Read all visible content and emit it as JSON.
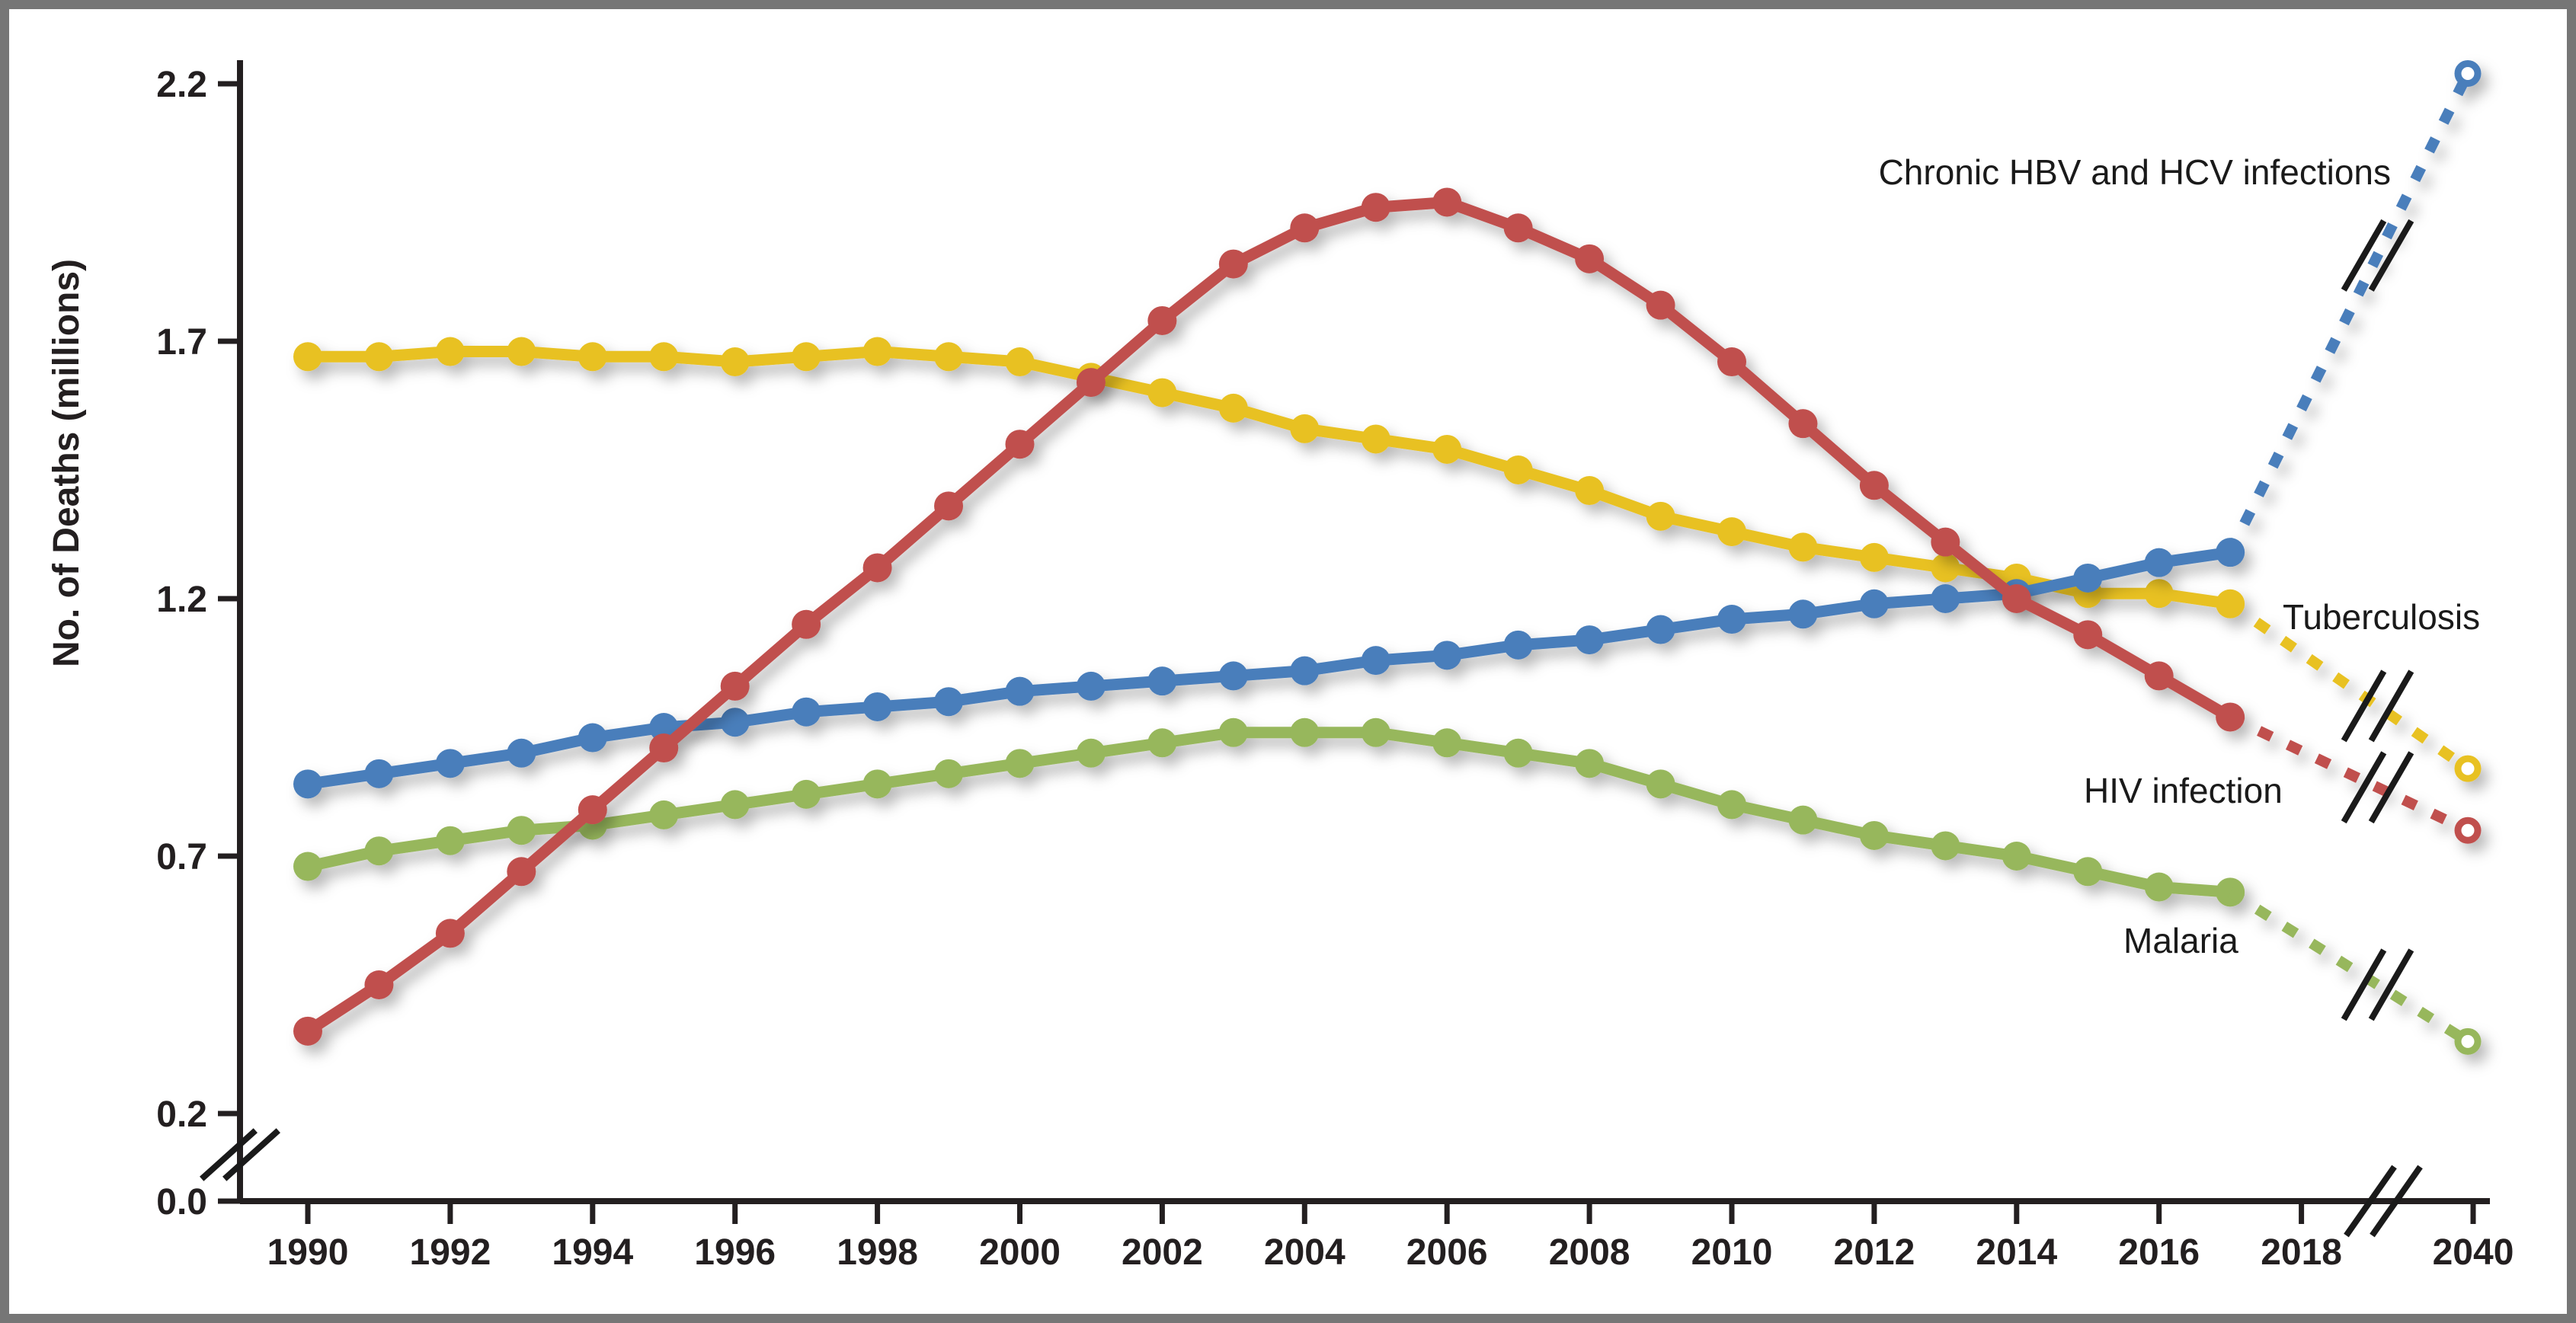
{
  "figure": {
    "background_color": "#ffffff",
    "frame_color": "#767676",
    "text_color": "#231f20"
  },
  "chart_data": {
    "type": "line",
    "title": "",
    "ylabel": "No. of Deaths (millions)",
    "xlabel": "",
    "grid": false,
    "legend_position": "inline-annotations",
    "y_ticks": [
      {
        "label": "2.2",
        "value": 2.2
      },
      {
        "label": "1.7",
        "value": 1.7
      },
      {
        "label": "1.2",
        "value": 1.2
      },
      {
        "label": "0.7",
        "value": 0.7
      },
      {
        "label": "0.2",
        "value": 0.2
      },
      {
        "label": "0.0",
        "value": 0.0
      }
    ],
    "x_ticks": [
      "1990",
      "1992",
      "1994",
      "1996",
      "1998",
      "2000",
      "2002",
      "2004",
      "2006",
      "2008",
      "2010",
      "2012",
      "2014",
      "2016",
      "2018",
      "2040"
    ],
    "axis_breaks": {
      "y_axis_between": [
        "0.0",
        "0.2"
      ],
      "x_axis_between": [
        "2018",
        "2040"
      ]
    },
    "years": [
      1990,
      1991,
      1992,
      1993,
      1994,
      1995,
      1996,
      1997,
      1998,
      1999,
      2000,
      2001,
      2002,
      2003,
      2004,
      2005,
      2006,
      2007,
      2008,
      2009,
      2010,
      2011,
      2012,
      2013,
      2014,
      2015,
      2016,
      2017
    ],
    "projection_year": 2040,
    "series": [
      {
        "name": "tuberculosis",
        "label": "Tuberculosis",
        "color": "#e8c123",
        "line_style": "solid",
        "marker": "circle",
        "projection_style": "dashed",
        "projection_marker": "open-circle",
        "values": [
          1.67,
          1.67,
          1.68,
          1.68,
          1.67,
          1.67,
          1.66,
          1.67,
          1.68,
          1.67,
          1.66,
          1.63,
          1.6,
          1.57,
          1.53,
          1.51,
          1.49,
          1.45,
          1.41,
          1.36,
          1.33,
          1.3,
          1.28,
          1.26,
          1.24,
          1.21,
          1.21,
          1.19
        ],
        "projection_value": 0.87
      },
      {
        "name": "malaria",
        "label": "Malaria",
        "color": "#97b75b",
        "line_style": "solid",
        "marker": "circle",
        "projection_style": "dashed",
        "projection_marker": "open-circle",
        "values": [
          0.68,
          0.71,
          0.73,
          0.75,
          0.76,
          0.78,
          0.8,
          0.82,
          0.84,
          0.86,
          0.88,
          0.9,
          0.92,
          0.94,
          0.94,
          0.94,
          0.92,
          0.9,
          0.88,
          0.84,
          0.8,
          0.77,
          0.74,
          0.72,
          0.7,
          0.67,
          0.64,
          0.63
        ],
        "projection_value": 0.34
      },
      {
        "name": "chronic-hbv-and-hcv-infections",
        "label": "Chronic HBV and HCV infections",
        "color": "#4a7ebb",
        "line_style": "solid",
        "marker": "circle",
        "projection_style": "dashed",
        "projection_marker": "open-circle",
        "values": [
          0.84,
          0.86,
          0.88,
          0.9,
          0.93,
          0.95,
          0.96,
          0.98,
          0.99,
          1.0,
          1.02,
          1.03,
          1.04,
          1.05,
          1.06,
          1.08,
          1.09,
          1.11,
          1.12,
          1.14,
          1.16,
          1.17,
          1.19,
          1.2,
          1.21,
          1.24,
          1.27,
          1.29
        ],
        "projection_value": 2.22
      },
      {
        "name": "hiv-infection",
        "label": "HIV infection",
        "color": "#c0504d",
        "line_style": "solid",
        "marker": "circle",
        "projection_style": "dashed",
        "projection_marker": "open-circle",
        "values": [
          0.36,
          0.45,
          0.55,
          0.67,
          0.79,
          0.91,
          1.03,
          1.15,
          1.26,
          1.38,
          1.5,
          1.62,
          1.74,
          1.85,
          1.92,
          1.96,
          1.97,
          1.92,
          1.86,
          1.77,
          1.66,
          1.54,
          1.42,
          1.31,
          1.2,
          1.13,
          1.05,
          0.97
        ],
        "projection_value": 0.75
      }
    ]
  }
}
